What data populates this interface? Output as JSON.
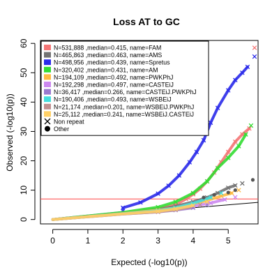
{
  "chart_data": {
    "type": "scatter",
    "title": "Loss AT to GC",
    "xlabel": "Expected (-log10(p))",
    "ylabel": "Observed (-log10(p))",
    "xlim": [
      -0.35,
      5.85
    ],
    "ylim": [
      -1.5,
      61
    ],
    "xticks": [
      0,
      1,
      2,
      3,
      4,
      5
    ],
    "yticks": [
      0,
      10,
      20,
      30,
      40,
      50,
      60
    ],
    "grid": false,
    "legend_position": "top-left",
    "threshold_line": {
      "y": 7,
      "color": "#ff4444"
    },
    "diagonal_line": {
      "from": [
        0,
        0
      ],
      "to": [
        5.85,
        5.85
      ],
      "color": "#000000"
    },
    "series": [
      {
        "name": "N=531,888 ,median=0.415, name=FAM",
        "color": "#f47676",
        "marker": "cross",
        "points": [
          [
            3.0,
            3.6
          ],
          [
            3.5,
            5.0
          ],
          [
            3.8,
            7.0
          ],
          [
            4.0,
            8.6
          ],
          [
            4.2,
            10.5
          ],
          [
            4.4,
            13.0
          ],
          [
            4.6,
            16.0
          ],
          [
            4.8,
            19.5
          ],
          [
            5.0,
            23.0
          ],
          [
            5.2,
            26.5
          ],
          [
            5.4,
            29.0
          ],
          [
            5.6,
            31.0
          ],
          [
            5.75,
            58.5
          ]
        ]
      },
      {
        "name": "N=465,863 ,median=0.463, name=AMS",
        "color": "#737373",
        "marker": "cross",
        "points": [
          [
            3.0,
            3.4
          ],
          [
            3.5,
            4.5
          ],
          [
            4.0,
            6.0
          ],
          [
            4.4,
            7.5
          ],
          [
            4.7,
            9.0
          ],
          [
            5.0,
            10.8
          ],
          [
            5.2,
            11.6
          ],
          [
            5.4,
            12.3
          ]
        ]
      },
      {
        "name": "N=498,956 ,median=0.439, name=Spretus",
        "color": "#2b2bea",
        "marker": "cross",
        "points": [
          [
            2.0,
            4.0
          ],
          [
            2.5,
            5.8
          ],
          [
            3.0,
            8.8
          ],
          [
            3.3,
            11.5
          ],
          [
            3.6,
            15.0
          ],
          [
            3.9,
            19.5
          ],
          [
            4.1,
            23.0
          ],
          [
            4.3,
            27.0
          ],
          [
            4.5,
            33.0
          ],
          [
            4.7,
            38.0
          ],
          [
            5.0,
            44.0
          ],
          [
            5.2,
            47.5
          ],
          [
            5.4,
            50.0
          ],
          [
            5.55,
            52.0
          ],
          [
            5.75,
            55.5
          ]
        ]
      },
      {
        "name": "N=320,402 ,median=0.431, name=AM",
        "color": "#33dd33",
        "marker": "cross",
        "points": [
          [
            3.0,
            4.2
          ],
          [
            3.5,
            6.0
          ],
          [
            4.0,
            9.0
          ],
          [
            4.4,
            13.0
          ],
          [
            4.7,
            17.5
          ],
          [
            5.0,
            21.0
          ],
          [
            5.3,
            25.0
          ],
          [
            5.5,
            29.0
          ],
          [
            5.65,
            32.0
          ]
        ]
      },
      {
        "name": "N=194,109 ,median=0.492, name=PWKPhJ",
        "color": "#ffbb44",
        "marker": "cross",
        "points": [
          [
            3.0,
            3.2
          ],
          [
            3.5,
            4.0
          ],
          [
            4.0,
            5.2
          ],
          [
            4.4,
            6.5
          ],
          [
            4.8,
            8.0
          ],
          [
            5.1,
            9.0
          ],
          [
            5.3,
            10.0
          ]
        ]
      },
      {
        "name": "N=192,298 ,median=0.497, name=CASTEiJ",
        "color": "#cc88f0",
        "marker": "cross",
        "points": [
          [
            3.0,
            2.8
          ],
          [
            3.5,
            3.5
          ],
          [
            4.0,
            4.5
          ],
          [
            4.5,
            5.6
          ],
          [
            4.9,
            6.8
          ],
          [
            5.2,
            7.6
          ]
        ]
      },
      {
        "name": "N=36,417 ,median=0.266, name=CASTEiJ.PWKPhJ",
        "color": "#9a7ad0",
        "marker": "cross",
        "points": [
          [
            3.0,
            2.6
          ],
          [
            3.5,
            3.2
          ],
          [
            4.0,
            4.0
          ],
          [
            4.4,
            5.0
          ]
        ]
      },
      {
        "name": "N=190,406 ,median=0.493, name=WSBEiJ",
        "color": "#44dddd",
        "marker": "cross",
        "points": [
          [
            3.0,
            3.0
          ],
          [
            3.5,
            4.0
          ],
          [
            4.0,
            5.5
          ],
          [
            4.5,
            7.5
          ],
          [
            4.8,
            9.0
          ]
        ]
      },
      {
        "name": "N=21,174 ,median=0.201, name=WSBEiJ.PWKPhJ",
        "color": "#c09090",
        "marker": "cross",
        "points": [
          [
            3.0,
            2.6
          ],
          [
            3.5,
            3.3
          ],
          [
            3.9,
            4.2
          ],
          [
            4.2,
            5.0
          ]
        ]
      },
      {
        "name": "N=25,112 ,median=0.241, name=WSBEiJ.CASTEiJ",
        "color": "#ffd066",
        "marker": "cross",
        "points": [
          [
            3.0,
            2.8
          ],
          [
            3.5,
            3.6
          ],
          [
            4.0,
            4.8
          ],
          [
            4.4,
            6.0
          ]
        ]
      }
    ],
    "extra_legend": [
      {
        "label": "Non repeat",
        "symbol": "cross"
      },
      {
        "label": "Other",
        "symbol": "dot"
      }
    ],
    "other_points": [
      [
        4.3,
        7.5
      ],
      [
        4.6,
        8.4
      ],
      [
        5.0,
        9.2
      ],
      [
        5.2,
        10.0
      ],
      [
        5.7,
        13.5
      ]
    ]
  }
}
